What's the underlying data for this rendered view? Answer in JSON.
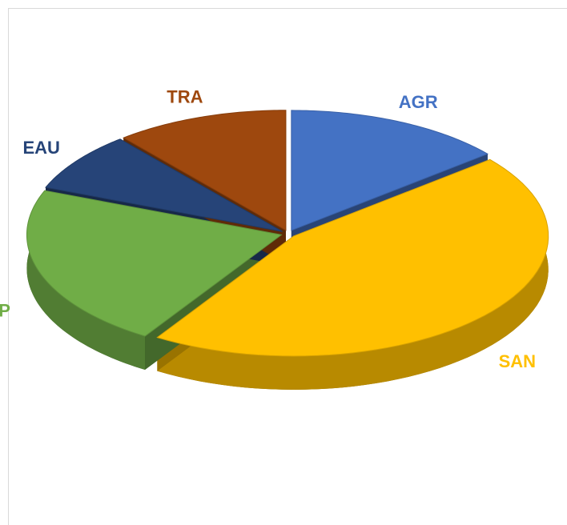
{
  "chart_data": {
    "type": "pie",
    "categories": [
      "AGR",
      "SAN",
      "AP",
      "EAU",
      "TRA"
    ],
    "values": [
      14,
      45,
      22,
      8,
      11
    ],
    "colors": [
      "#4472c4",
      "#ffc000",
      "#70ad47",
      "#264478",
      "#9e480e"
    ]
  }
}
